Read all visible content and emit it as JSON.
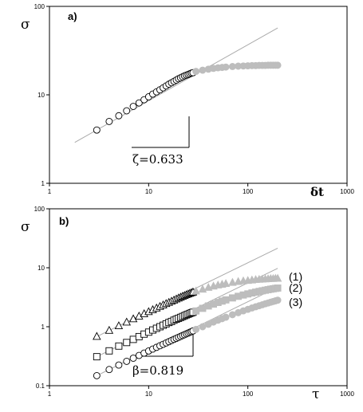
{
  "chart_data": [
    {
      "type": "scatter",
      "panel_label": "a)",
      "ylabel": "σ",
      "xlabel": "δt",
      "xscale": "log",
      "yscale": "log",
      "xlim": [
        1,
        1000
      ],
      "ylim": [
        1,
        100
      ],
      "x_ticks": [
        "1",
        "10",
        "100",
        "1000"
      ],
      "y_ticks": [
        "1",
        "10",
        "100"
      ],
      "grid": false,
      "annotation": "ζ=0.633",
      "fit_line": {
        "slope": 0.633,
        "x": [
          1.8,
          200
        ],
        "y": [
          2.9,
          57
        ]
      },
      "series": [
        {
          "marker": "circle-open",
          "x": [
            3,
            4,
            5,
            6,
            7,
            8,
            9,
            10,
            11,
            12,
            13,
            14,
            15,
            16,
            17,
            18,
            19,
            20,
            21,
            22,
            23,
            24,
            25,
            26,
            27,
            28
          ],
          "y": [
            4.0,
            5.0,
            5.8,
            6.6,
            7.4,
            8.1,
            8.8,
            9.5,
            10.2,
            10.8,
            11.4,
            12.0,
            12.6,
            13.2,
            13.7,
            14.2,
            14.7,
            15.2,
            15.6,
            16.0,
            16.4,
            16.7,
            17.0,
            17.3,
            17.6,
            17.8
          ]
        },
        {
          "marker": "circle-filled-gray",
          "x": [
            30,
            35,
            40,
            45,
            50,
            55,
            60,
            70,
            80,
            90,
            100,
            110,
            120,
            130,
            140,
            150,
            160,
            170,
            180,
            190,
            200
          ],
          "y": [
            18.4,
            19.0,
            19.5,
            19.9,
            20.2,
            20.4,
            20.6,
            20.9,
            21.1,
            21.2,
            21.3,
            21.4,
            21.4,
            21.5,
            21.5,
            21.5,
            21.6,
            21.6,
            21.6,
            21.6,
            21.6
          ]
        }
      ]
    },
    {
      "type": "scatter",
      "panel_label": "b)",
      "ylabel": "σ",
      "xlabel": "τ",
      "xscale": "log",
      "yscale": "log",
      "xlim": [
        1,
        1000
      ],
      "ylim": [
        0.1,
        100
      ],
      "x_ticks": [
        "1",
        "10",
        "100",
        "1000"
      ],
      "y_ticks": [
        "0.1",
        "1",
        "10",
        "100"
      ],
      "grid": false,
      "annotation": "β=0.819",
      "fit_lines": [
        {
          "slope": 0.819,
          "x": [
            3,
            200
          ],
          "y": [
            0.68,
            21.5
          ]
        },
        {
          "slope": 0.819,
          "x": [
            3,
            200
          ],
          "y": [
            0.31,
            9.8
          ]
        },
        {
          "slope": 0.819,
          "x": [
            3,
            200
          ],
          "y": [
            0.148,
            4.7
          ]
        }
      ],
      "series_labels": [
        "(1)",
        "(2)",
        "(3)"
      ],
      "series": [
        {
          "marker": "triangle-open",
          "x": [
            3,
            4,
            5,
            6,
            7,
            8,
            9,
            10,
            11,
            12,
            13,
            14,
            15,
            16,
            17,
            18,
            19,
            20,
            21,
            22,
            23,
            24,
            25,
            26,
            27,
            28
          ],
          "y": [
            0.68,
            0.86,
            1.03,
            1.19,
            1.35,
            1.5,
            1.65,
            1.79,
            1.93,
            2.06,
            2.19,
            2.32,
            2.45,
            2.57,
            2.69,
            2.81,
            2.93,
            3.04,
            3.15,
            3.26,
            3.36,
            3.46,
            3.56,
            3.66,
            3.75,
            3.84
          ]
        },
        {
          "marker": "triangle-filled-gray",
          "x": [
            30,
            35,
            40,
            45,
            50,
            55,
            60,
            70,
            80,
            90,
            100,
            110,
            120,
            130,
            140,
            150,
            160,
            170,
            180,
            190,
            200
          ],
          "y": [
            4.0,
            4.3,
            4.6,
            4.85,
            5.05,
            5.2,
            5.35,
            5.6,
            5.8,
            5.95,
            6.05,
            6.15,
            6.25,
            6.3,
            6.35,
            6.4,
            6.45,
            6.5,
            6.5,
            6.55,
            6.55
          ]
        },
        {
          "marker": "square-open",
          "x": [
            3,
            4,
            5,
            6,
            7,
            8,
            9,
            10,
            11,
            12,
            13,
            14,
            15,
            16,
            17,
            18,
            19,
            20,
            21,
            22,
            23,
            24,
            25,
            26,
            27,
            28
          ],
          "y": [
            0.31,
            0.39,
            0.47,
            0.54,
            0.61,
            0.68,
            0.75,
            0.81,
            0.88,
            0.94,
            1.0,
            1.06,
            1.12,
            1.18,
            1.23,
            1.29,
            1.34,
            1.39,
            1.44,
            1.49,
            1.54,
            1.59,
            1.63,
            1.68,
            1.72,
            1.76
          ]
        },
        {
          "marker": "square-filled-gray",
          "x": [
            30,
            35,
            40,
            45,
            50,
            55,
            60,
            70,
            80,
            90,
            100,
            110,
            120,
            130,
            140,
            150,
            160,
            170,
            180,
            190,
            200
          ],
          "y": [
            1.85,
            2.05,
            2.25,
            2.42,
            2.58,
            2.72,
            2.85,
            3.08,
            3.28,
            3.45,
            3.6,
            3.74,
            3.86,
            3.97,
            4.07,
            4.16,
            4.25,
            4.33,
            4.4,
            4.47,
            4.53
          ]
        },
        {
          "marker": "circle-open",
          "x": [
            3,
            4,
            5,
            6,
            7,
            8,
            9,
            10,
            11,
            12,
            13,
            14,
            15,
            16,
            17,
            18,
            19,
            20,
            21,
            22,
            23,
            24,
            25,
            26,
            27,
            28
          ],
          "y": [
            0.148,
            0.188,
            0.224,
            0.259,
            0.293,
            0.326,
            0.357,
            0.388,
            0.418,
            0.447,
            0.476,
            0.504,
            0.531,
            0.558,
            0.585,
            0.611,
            0.636,
            0.661,
            0.686,
            0.71,
            0.734,
            0.758,
            0.781,
            0.804,
            0.827,
            0.849
          ]
        },
        {
          "marker": "circle-filled-gray",
          "x": [
            30,
            35,
            40,
            45,
            50,
            55,
            60,
            70,
            80,
            90,
            100,
            110,
            120,
            130,
            140,
            150,
            160,
            170,
            180,
            190,
            200
          ],
          "y": [
            0.9,
            1.0,
            1.1,
            1.2,
            1.29,
            1.37,
            1.45,
            1.6,
            1.73,
            1.86,
            1.97,
            2.08,
            2.18,
            2.27,
            2.36,
            2.45,
            2.53,
            2.61,
            2.68,
            2.75,
            2.82
          ]
        }
      ]
    }
  ]
}
